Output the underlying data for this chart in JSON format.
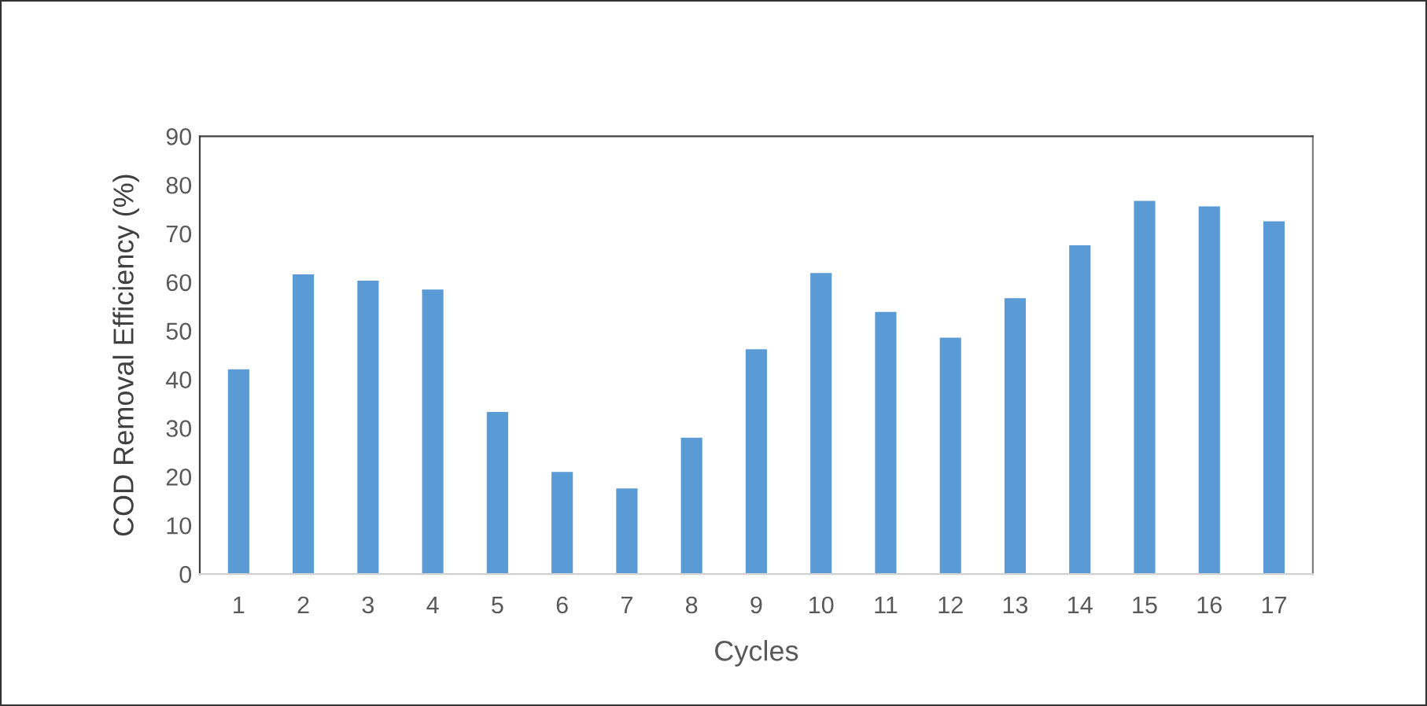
{
  "chart_data": {
    "type": "bar",
    "xlabel": "Cycles",
    "ylabel": "COD Removal Efficiency (%)",
    "categories": [
      "1",
      "2",
      "3",
      "4",
      "5",
      "6",
      "7",
      "8",
      "9",
      "10",
      "11",
      "12",
      "13",
      "14",
      "15",
      "16",
      "17"
    ],
    "values": [
      42.1,
      61.6,
      60.3,
      58.5,
      33.3,
      21.0,
      17.6,
      28.0,
      46.2,
      61.9,
      53.9,
      48.6,
      56.7,
      67.6,
      76.7,
      75.6,
      72.5
    ],
    "color": "#5b9bd5",
    "ylim": [
      0,
      90
    ],
    "yticks": [
      0,
      10,
      20,
      30,
      40,
      50,
      60,
      70,
      80,
      90
    ],
    "grid": false,
    "legend": false
  }
}
